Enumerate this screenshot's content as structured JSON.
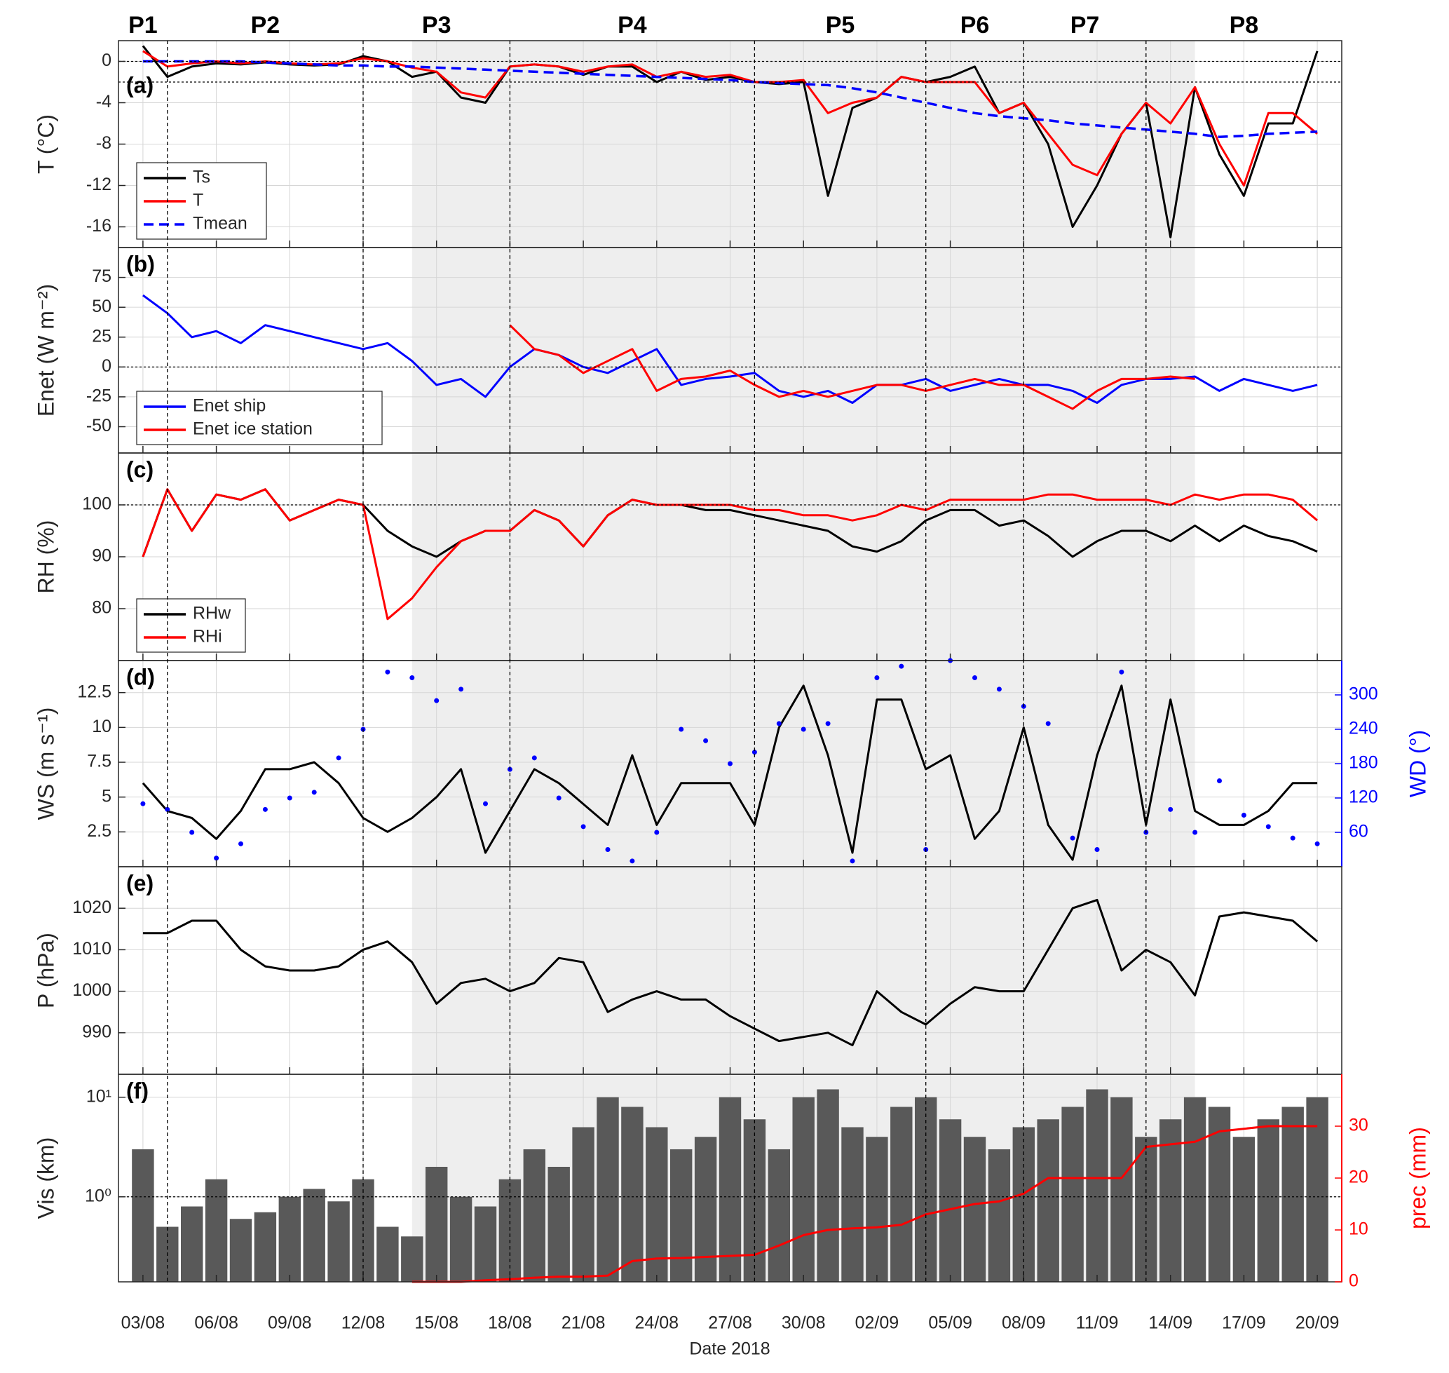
{
  "x_axis": {
    "x": [
      "2018-08-03",
      "2018-08-04",
      "2018-08-05",
      "2018-08-06",
      "2018-08-07",
      "2018-08-08",
      "2018-08-09",
      "2018-08-10",
      "2018-08-11",
      "2018-08-12",
      "2018-08-13",
      "2018-08-14",
      "2018-08-15",
      "2018-08-16",
      "2018-08-17",
      "2018-08-18",
      "2018-08-19",
      "2018-08-20",
      "2018-08-21",
      "2018-08-22",
      "2018-08-23",
      "2018-08-24",
      "2018-08-25",
      "2018-08-26",
      "2018-08-27",
      "2018-08-28",
      "2018-08-29",
      "2018-08-30",
      "2018-08-31",
      "2018-09-01",
      "2018-09-02",
      "2018-09-03",
      "2018-09-04",
      "2018-09-05",
      "2018-09-06",
      "2018-09-07",
      "2018-09-08",
      "2018-09-09",
      "2018-09-10",
      "2018-09-11",
      "2018-09-12",
      "2018-09-13",
      "2018-09-14",
      "2018-09-15",
      "2018-09-16",
      "2018-09-17",
      "2018-09-18",
      "2018-09-19",
      "2018-09-20"
    ],
    "xlim": [
      "2018-08-02",
      "2018-09-21"
    ],
    "xticks": [
      {
        "value": "2018-08-03",
        "label": "03/08"
      },
      {
        "value": "2018-08-06",
        "label": "06/08"
      },
      {
        "value": "2018-08-09",
        "label": "09/08"
      },
      {
        "value": "2018-08-12",
        "label": "12/08"
      },
      {
        "value": "2018-08-15",
        "label": "15/08"
      },
      {
        "value": "2018-08-18",
        "label": "18/08"
      },
      {
        "value": "2018-08-21",
        "label": "21/08"
      },
      {
        "value": "2018-08-24",
        "label": "24/08"
      },
      {
        "value": "2018-08-27",
        "label": "27/08"
      },
      {
        "value": "2018-08-30",
        "label": "30/08"
      },
      {
        "value": "2018-09-02",
        "label": "02/09"
      },
      {
        "value": "2018-09-05",
        "label": "05/09"
      },
      {
        "value": "2018-09-08",
        "label": "08/09"
      },
      {
        "value": "2018-09-11",
        "label": "11/09"
      },
      {
        "value": "2018-09-14",
        "label": "14/09"
      },
      {
        "value": "2018-09-17",
        "label": "17/09"
      },
      {
        "value": "2018-09-20",
        "label": "20/09"
      }
    ],
    "xlabel": "Date 2018",
    "periods": [
      "P1",
      "P2",
      "P3",
      "P4",
      "P5",
      "P6",
      "P7",
      "P8"
    ],
    "period_boundaries": [
      "2018-08-04",
      "2018-08-12",
      "2018-08-18",
      "2018-08-28",
      "2018-09-04",
      "2018-09-08",
      "2018-09-13"
    ],
    "shaded_range": [
      "2018-08-14",
      "2018-09-15"
    ]
  },
  "chart_data": [
    {
      "type": "line",
      "panel_label": "(a)",
      "ylabel": "T (°C)",
      "ylim": [
        -18,
        2
      ],
      "yticks": [
        -16,
        -12,
        -8,
        -4,
        0
      ],
      "ref_lines": [
        0,
        -2
      ],
      "grid": true,
      "legend": "lower left",
      "series": [
        {
          "name": "Ts",
          "color": "#000000",
          "values": [
            1.5,
            -1.5,
            -0.5,
            -0.2,
            -0.3,
            -0.1,
            -0.3,
            -0.4,
            -0.3,
            0.5,
            0,
            -1.5,
            -1,
            -3.5,
            -4,
            -0.5,
            -0.3,
            -0.5,
            -1.3,
            -0.5,
            -0.5,
            -2,
            -1,
            -1.8,
            -1.5,
            -2,
            -2.2,
            -2,
            -13,
            -4.5,
            -3.5,
            -1.5,
            -2,
            -1.5,
            -0.5,
            -5,
            -4,
            -8,
            -16,
            -12,
            -7,
            -4,
            -17,
            -2.5,
            -9,
            -13,
            -6,
            -6,
            1
          ]
        },
        {
          "name": "T",
          "color": "#ff0000",
          "values": [
            1,
            -0.5,
            -0.2,
            0,
            -0.2,
            0,
            -0.2,
            -0.3,
            -0.2,
            0.3,
            0,
            -0.6,
            -1,
            -3,
            -3.5,
            -0.5,
            -0.3,
            -0.5,
            -1,
            -0.5,
            -0.3,
            -1.5,
            -1,
            -1.5,
            -1.3,
            -2,
            -2,
            -1.8,
            -5,
            -4,
            -3.5,
            -1.5,
            -2,
            -2,
            -2,
            -5,
            -4,
            -7,
            -10,
            -11,
            -7,
            -4,
            -6,
            -2.5,
            -8,
            -12,
            -5,
            -5,
            -7
          ]
        },
        {
          "name": "Tmean",
          "color": "#0000ff",
          "dash": true,
          "values": [
            0,
            0,
            0,
            0,
            0,
            -0.1,
            -0.2,
            -0.3,
            -0.4,
            -0.4,
            -0.5,
            -0.5,
            -0.6,
            -0.7,
            -0.8,
            -0.9,
            -1,
            -1.1,
            -1.2,
            -1.3,
            -1.4,
            -1.5,
            -1.6,
            -1.7,
            -1.8,
            -2,
            -2.1,
            -2.2,
            -2.3,
            -2.6,
            -3,
            -3.5,
            -4,
            -4.5,
            -5,
            -5.3,
            -5.5,
            -5.7,
            -6,
            -6.2,
            -6.4,
            -6.6,
            -6.8,
            -7,
            -7.3,
            -7.2,
            -7,
            -6.9,
            -6.8
          ]
        }
      ]
    },
    {
      "type": "line",
      "panel_label": "(b)",
      "ylabel": "Enet (W m⁻²)",
      "ylim": [
        -72,
        100
      ],
      "yticks": [
        -50,
        -25,
        0,
        25,
        50,
        75
      ],
      "ref_lines": [
        0
      ],
      "grid": true,
      "legend": "lower left",
      "series": [
        {
          "name": "Enet ship",
          "color": "#0000ff",
          "values": [
            60,
            45,
            25,
            30,
            20,
            35,
            30,
            25,
            20,
            15,
            20,
            5,
            -15,
            -10,
            -25,
            0,
            15,
            10,
            0,
            -5,
            5,
            15,
            -15,
            -10,
            -8,
            -5,
            -20,
            -25,
            -20,
            -30,
            -15,
            -15,
            -10,
            -20,
            -15,
            -10,
            -15,
            -15,
            -20,
            -30,
            -15,
            -10,
            -10,
            -8,
            -20,
            -10,
            -15,
            -20,
            -15
          ]
        },
        {
          "name": "Enet ice station",
          "color": "#ff0000",
          "values": [
            null,
            null,
            null,
            null,
            null,
            null,
            null,
            null,
            null,
            null,
            null,
            null,
            null,
            null,
            null,
            35,
            15,
            10,
            -5,
            5,
            15,
            -20,
            -10,
            -8,
            -3,
            -15,
            -25,
            -20,
            -25,
            -20,
            -15,
            -15,
            -20,
            -15,
            -10,
            -15,
            -15,
            -25,
            -35,
            -20,
            -10,
            -10,
            -8,
            -10,
            null,
            null,
            null,
            null,
            null
          ]
        }
      ]
    },
    {
      "type": "line",
      "panel_label": "(c)",
      "ylabel": "RH (%)",
      "ylim": [
        70,
        110
      ],
      "yticks": [
        80,
        90,
        100
      ],
      "ref_lines": [
        100
      ],
      "grid": true,
      "legend": "lower left",
      "series": [
        {
          "name": "RHw",
          "color": "#000000",
          "values": [
            90,
            103,
            95,
            102,
            101,
            103,
            97,
            99,
            101,
            100,
            95,
            92,
            90,
            93,
            95,
            95,
            99,
            97,
            92,
            98,
            101,
            100,
            100,
            99,
            99,
            98,
            97,
            96,
            95,
            92,
            91,
            93,
            97,
            99,
            99,
            96,
            97,
            94,
            90,
            93,
            95,
            95,
            93,
            96,
            93,
            96,
            94,
            93,
            91
          ]
        },
        {
          "name": "RHi",
          "color": "#ff0000",
          "values": [
            90,
            103,
            95,
            102,
            101,
            103,
            97,
            99,
            101,
            100,
            78,
            82,
            88,
            93,
            95,
            95,
            99,
            97,
            92,
            98,
            101,
            100,
            100,
            100,
            100,
            99,
            99,
            98,
            98,
            97,
            98,
            100,
            99,
            101,
            101,
            101,
            101,
            102,
            102,
            101,
            101,
            101,
            100,
            102,
            101,
            102,
            102,
            101,
            97
          ]
        }
      ]
    },
    {
      "type": "line",
      "panel_label": "(d)",
      "ylabel": "WS (m s⁻¹)",
      "ylim": [
        0,
        14.8
      ],
      "yticks": [
        2.5,
        5,
        7.5,
        10,
        12.5
      ],
      "grid": true,
      "y2label": "WD (°)",
      "y2lim": [
        0,
        360
      ],
      "y2ticks": [
        60,
        120,
        180,
        240,
        300
      ],
      "y2color": "#0000ff",
      "series": [
        {
          "color": "#000000",
          "values": [
            6,
            4,
            3.5,
            2,
            4,
            7,
            7,
            7.5,
            6,
            3.5,
            2.5,
            3.5,
            5,
            7,
            1,
            4,
            7,
            6,
            4.5,
            3,
            8,
            3,
            6,
            6,
            6,
            3,
            10,
            13,
            8,
            1,
            12,
            12,
            7,
            8,
            2,
            4,
            10,
            3,
            0.5,
            8,
            13,
            3,
            12,
            4,
            3,
            3,
            4,
            6,
            6
          ]
        },
        {
          "color": "#0000ff",
          "axis": "y2",
          "kind": "dots",
          "values": [
            110,
            100,
            60,
            15,
            40,
            100,
            120,
            130,
            190,
            240,
            340,
            330,
            290,
            310,
            110,
            170,
            190,
            120,
            70,
            30,
            10,
            60,
            240,
            220,
            180,
            200,
            250,
            240,
            250,
            10,
            330,
            350,
            30,
            360,
            330,
            310,
            280,
            250,
            50,
            30,
            340,
            60,
            100,
            60,
            150,
            90,
            70,
            50,
            40
          ]
        }
      ]
    },
    {
      "type": "line",
      "panel_label": "(e)",
      "ylabel": "P (hPa)",
      "ylim": [
        980,
        1030
      ],
      "yticks": [
        990,
        1000,
        1010,
        1020
      ],
      "grid": true,
      "series": [
        {
          "color": "#000000",
          "values": [
            1014,
            1014,
            1017,
            1017,
            1010,
            1006,
            1005,
            1005,
            1006,
            1010,
            1012,
            1007,
            997,
            1002,
            1003,
            1000,
            1002,
            1008,
            1007,
            995,
            998,
            1000,
            998,
            998,
            994,
            991,
            988,
            989,
            990,
            987,
            1000,
            995,
            992,
            997,
            1001,
            1000,
            1000,
            1010,
            1020,
            1022,
            1005,
            1010,
            1007,
            999,
            1018,
            1019,
            1018,
            1017,
            1012
          ]
        }
      ]
    },
    {
      "type": "bar",
      "panel_label": "(f)",
      "ylabel": "Vis (km)",
      "ylim": [
        0.14,
        17
      ],
      "ylog": true,
      "yticks": [
        {
          "value": 1,
          "label": "10⁰"
        },
        {
          "value": 10,
          "label": "10¹"
        }
      ],
      "ref_lines": [
        1
      ],
      "grid": true,
      "y2label": "prec (mm)",
      "y2lim": [
        0,
        40
      ],
      "y2ticks": [
        0,
        10,
        20,
        30
      ],
      "y2color": "#ff0000",
      "series": [
        {
          "color": "#595959",
          "values": [
            3,
            0.5,
            0.8,
            1.5,
            0.6,
            0.7,
            1,
            1.2,
            0.9,
            1.5,
            0.5,
            0.4,
            2,
            1,
            0.8,
            1.5,
            3,
            2,
            5,
            10,
            8,
            5,
            3,
            4,
            10,
            6,
            3,
            10,
            12,
            5,
            4,
            8,
            10,
            6,
            4,
            3,
            5,
            6,
            8,
            12,
            10,
            4,
            6,
            10,
            8,
            4,
            6,
            8,
            10
          ]
        },
        {
          "color": "#ff0000",
          "axis": "y2",
          "kind": "line",
          "values": [
            null,
            null,
            null,
            null,
            null,
            null,
            null,
            null,
            null,
            null,
            null,
            0,
            0,
            0,
            0.3,
            0.5,
            0.8,
            1,
            1,
            1.2,
            4,
            4.5,
            4.6,
            4.8,
            5,
            5.2,
            7,
            9,
            10,
            10.3,
            10.5,
            11,
            13,
            14,
            15,
            15.5,
            17,
            20,
            20,
            20,
            20,
            26,
            26.5,
            27,
            29,
            29.5,
            30,
            30,
            30
          ]
        }
      ]
    }
  ]
}
